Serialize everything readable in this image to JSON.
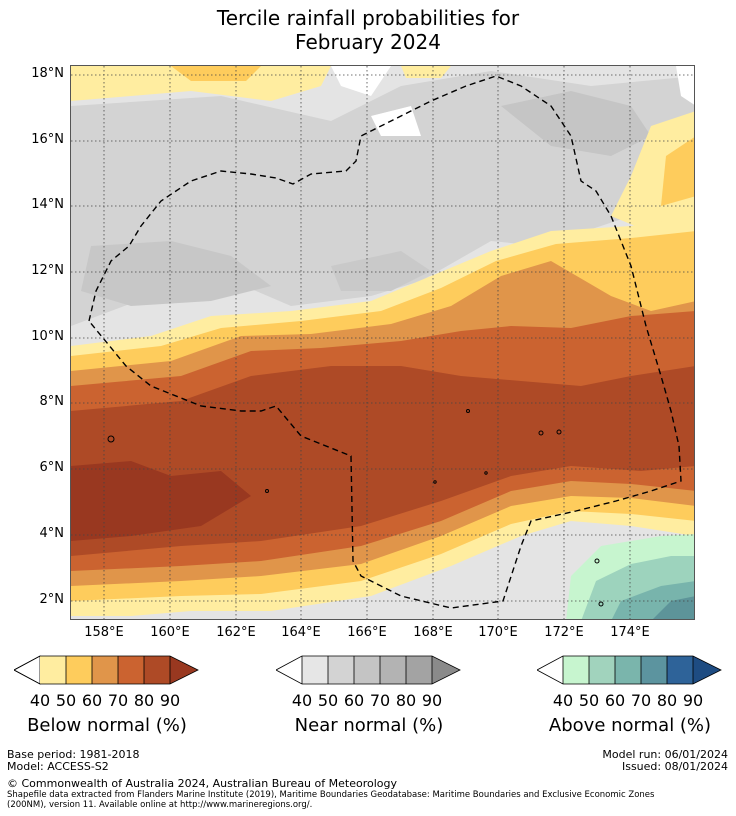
{
  "title_line1": "Tercile rainfall probabilities for",
  "title_line2": "February 2024",
  "map": {
    "lat_labels": [
      "18°N",
      "16°N",
      "14°N",
      "12°N",
      "10°N",
      "8°N",
      "6°N",
      "4°N",
      "2°N"
    ],
    "lon_labels": [
      "158°E",
      "160°E",
      "162°E",
      "164°E",
      "166°E",
      "168°E",
      "170°E",
      "172°E",
      "174°E"
    ],
    "colors": {
      "below": [
        "#ffeda0",
        "#fecc5c",
        "#e0954a",
        "#cb6330",
        "#ae4a26",
        "#993820"
      ],
      "near": [
        "#e6e6e6",
        "#d3d3d3",
        "#c4c4c4",
        "#b3b3b3",
        "#9e9e9e",
        "#8a8a8a"
      ],
      "above": [
        "#c7f5cf",
        "#9dd3bd",
        "#78b4ac",
        "#5d9499",
        "#2a5f8e",
        "#1e4c82"
      ],
      "eez": "#000000",
      "grid": "#444444"
    }
  },
  "legends": [
    {
      "title": "Below normal (%)",
      "ticks": [
        "40",
        "50",
        "60",
        "70",
        "80",
        "90"
      ],
      "colors": [
        "#ffeda0",
        "#fecc5c",
        "#e0954a",
        "#cb6330",
        "#ae4a26",
        "#993820"
      ]
    },
    {
      "title": "Near normal (%)",
      "ticks": [
        "40",
        "50",
        "60",
        "70",
        "80",
        "90"
      ],
      "colors": [
        "#e6e6e6",
        "#d3d3d3",
        "#c4c4c4",
        "#b3b3b3",
        "#a3a3a3",
        "#8a8a8a"
      ]
    },
    {
      "title": "Above normal (%)",
      "ticks": [
        "40",
        "50",
        "60",
        "70",
        "80",
        "90"
      ],
      "colors": [
        "#c7f5cf",
        "#a1d3bd",
        "#7ab5ac",
        "#5c949f",
        "#2e6399",
        "#1e4c82"
      ]
    }
  ],
  "footer": {
    "base_period": "Base period: 1981-2018",
    "model": "Model: ACCESS-S2",
    "model_run": "Model run: 06/01/2024",
    "issued": "Issued: 08/01/2024",
    "copyright": "© Commonwealth of Australia 2024, Australian Bureau of Meteorology",
    "shapefile_line1": "Shapefile data extracted from Flanders Marine Institute (2019), Maritime Boundaries Geodatabase: Maritime Boundaries and Exclusive Economic Zones",
    "shapefile_line2": "(200NM), version 11. Available online at http://www.marineregions.org/."
  }
}
